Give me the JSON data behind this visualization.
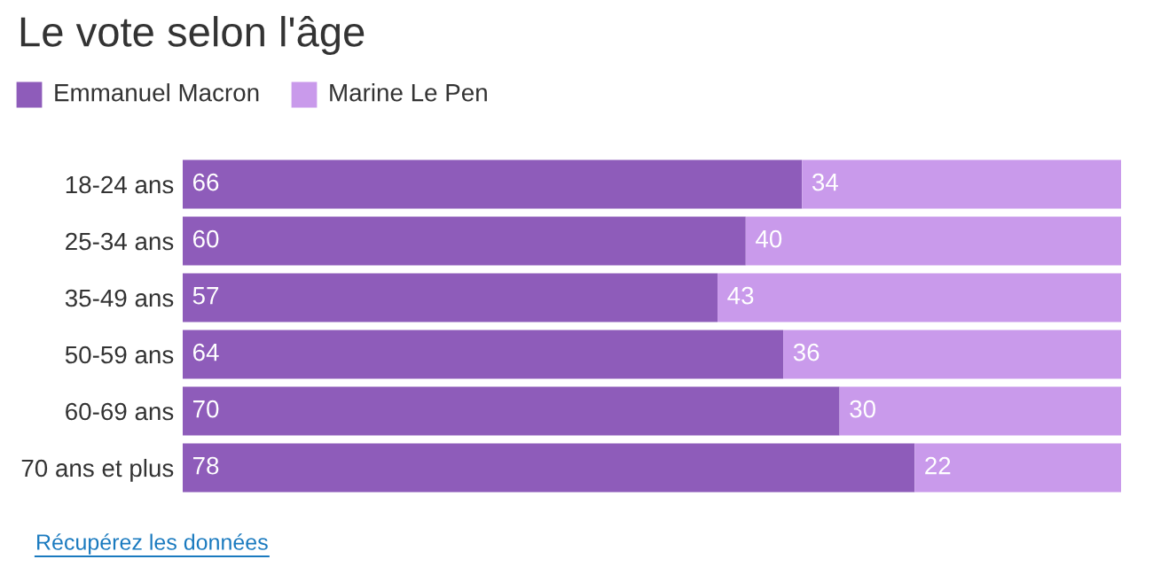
{
  "chart_data": {
    "type": "bar",
    "orientation": "horizontal",
    "stacked": true,
    "title": "Le vote selon l'âge",
    "categories": [
      "18-24 ans",
      "25-34 ans",
      "35-49 ans",
      "50-59 ans",
      "60-69 ans",
      "70 ans et plus"
    ],
    "series": [
      {
        "name": "Emmanuel Macron",
        "color": "#8e5cba",
        "values": [
          66,
          60,
          57,
          64,
          70,
          78
        ]
      },
      {
        "name": "Marine Le Pen",
        "color": "#c99aeb",
        "values": [
          34,
          40,
          43,
          36,
          30,
          22
        ]
      }
    ],
    "data_labels": true,
    "legend": "top left",
    "grid": false,
    "annotations": [
      "Récupérez les données"
    ]
  }
}
